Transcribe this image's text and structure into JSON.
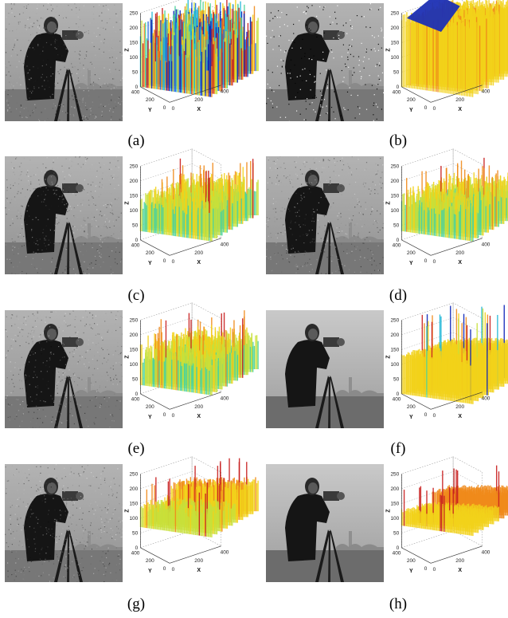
{
  "figure": {
    "panels": [
      {
        "id": "a",
        "caption": "(a)",
        "photo": "noisy",
        "surface": "noise"
      },
      {
        "id": "b",
        "caption": "(b)",
        "photo": "impulse",
        "surface": "block"
      },
      {
        "id": "c",
        "caption": "(c)",
        "photo": "noisy",
        "surface": "smooth"
      },
      {
        "id": "d",
        "caption": "(d)",
        "photo": "noisy",
        "surface": "smooth"
      },
      {
        "id": "e",
        "caption": "(e)",
        "photo": "noisy",
        "surface": "smooth"
      },
      {
        "id": "f",
        "caption": "(f)",
        "photo": "clean",
        "surface": "flat"
      },
      {
        "id": "g",
        "caption": "(g)",
        "photo": "noisy",
        "surface": "piecewise"
      },
      {
        "id": "h",
        "caption": "(h)",
        "photo": "clean",
        "surface": "piecewise-smooth"
      }
    ],
    "axes": {
      "z_label": "Z",
      "y_label": "Y",
      "x_label": "X",
      "z_ticks": [
        "250",
        "200",
        "150",
        "100",
        "50",
        "0"
      ],
      "y_ticks": [
        "400",
        "200",
        "0"
      ],
      "x_ticks": [
        "0",
        "200",
        "400"
      ]
    },
    "colormap": [
      "#0b22b8",
      "#1f66e0",
      "#22b8d8",
      "#4fd39a",
      "#c8e03a",
      "#f2d21a",
      "#f08a1a",
      "#c81e1e"
    ]
  }
}
